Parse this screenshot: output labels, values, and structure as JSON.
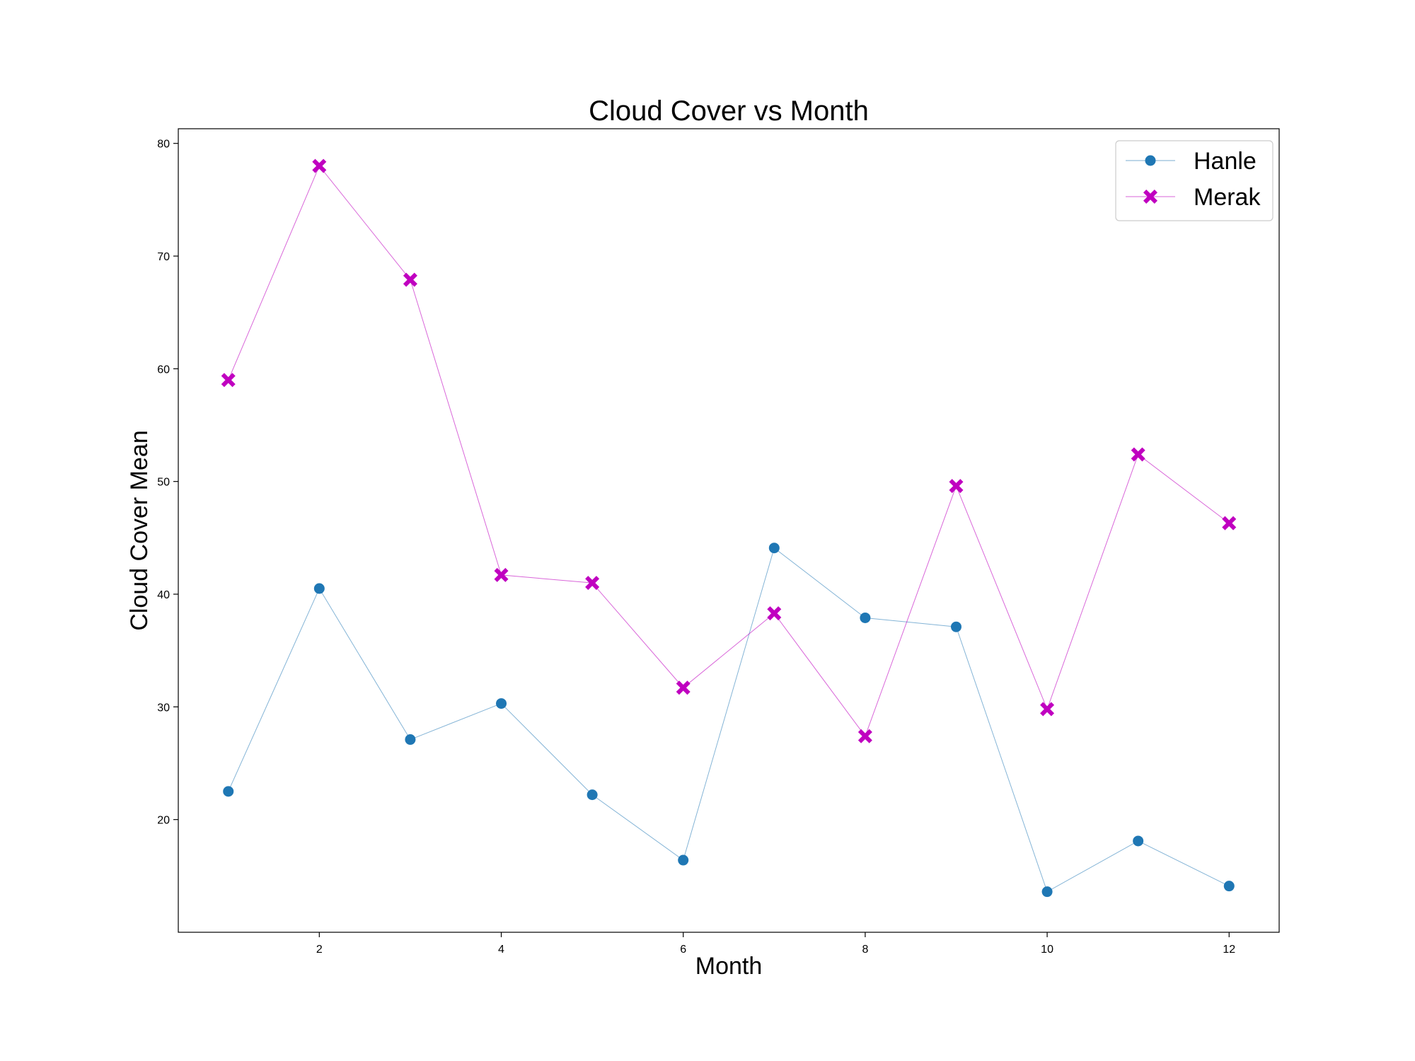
{
  "chart_data": {
    "type": "line",
    "title": "Cloud Cover vs Month",
    "xlabel": "Month",
    "ylabel": "Cloud Cover Mean",
    "x": [
      1,
      2,
      3,
      4,
      5,
      6,
      7,
      8,
      9,
      10,
      11,
      12
    ],
    "xlim": [
      0.45,
      12.55
    ],
    "ylim": [
      10.0,
      81.3
    ],
    "xticks": [
      2,
      4,
      6,
      8,
      10,
      12
    ],
    "yticks": [
      20,
      30,
      40,
      50,
      60,
      70,
      80
    ],
    "grid": false,
    "legend_position": "top-right",
    "series": [
      {
        "name": "Hanle",
        "color": "#1f77b4",
        "marker": "circle",
        "values": [
          22.5,
          40.5,
          27.1,
          30.3,
          22.2,
          16.4,
          44.1,
          37.9,
          37.1,
          13.6,
          18.1,
          14.1
        ]
      },
      {
        "name": "Merak",
        "color": "#c000c0",
        "marker": "x-filled",
        "values": [
          59.0,
          78.0,
          67.9,
          41.7,
          41.0,
          31.7,
          38.3,
          27.4,
          49.6,
          29.8,
          52.4,
          46.3
        ]
      }
    ]
  }
}
